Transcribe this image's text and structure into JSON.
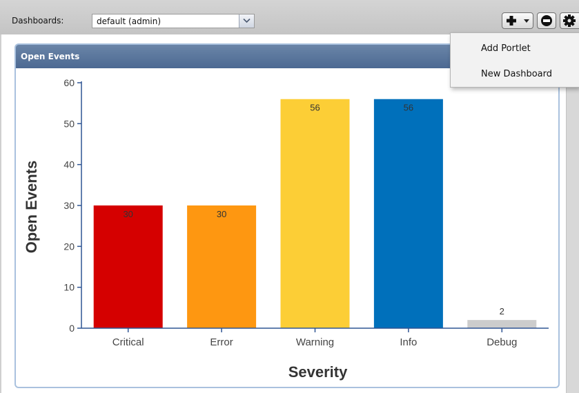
{
  "toolbar": {
    "dashboards_label": "Dashboards:",
    "dashboard_select": {
      "selected": "default (admin)",
      "icon": "chevron-down-icon"
    },
    "buttons": [
      {
        "name": "add-menu-button",
        "icon": "plus-icon",
        "has_dropdown": true
      },
      {
        "name": "remove-button",
        "icon": "minus-circle-icon"
      },
      {
        "name": "settings-button",
        "icon": "gear-icon"
      }
    ]
  },
  "menu": {
    "items": [
      {
        "label": "Add Portlet"
      },
      {
        "label": "New Dashboard"
      }
    ]
  },
  "portlet": {
    "title": "Open Events"
  },
  "colors": {
    "header_bar": "#4c6992",
    "portlet_border": "#a9c1de",
    "axis": "#2f5593"
  },
  "chart_data": {
    "type": "bar",
    "categories": [
      "Critical",
      "Error",
      "Warning",
      "Info",
      "Debug"
    ],
    "values": [
      30,
      30,
      56,
      56,
      2
    ],
    "colors": [
      "#d50000",
      "#fe9711",
      "#fcce36",
      "#0070bb",
      "#cccccc"
    ],
    "xlabel": "Severity",
    "ylabel": "Open Events",
    "ylim": [
      0,
      60
    ],
    "yticks": [
      0,
      10,
      20,
      30,
      40,
      50,
      60
    ],
    "data_labels": true,
    "grid": false,
    "legend": "none"
  }
}
